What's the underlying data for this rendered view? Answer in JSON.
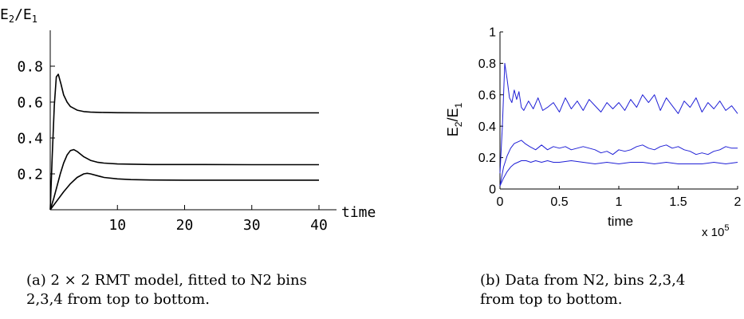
{
  "chart_data": [
    {
      "type": "line",
      "title": "",
      "ylabel": "E2/E1",
      "ylabel_parts": {
        "a": "E",
        "a_sub": "2",
        "slash": "/",
        "b": "E",
        "b_sub": "1"
      },
      "xlabel": "time",
      "xlim": [
        0,
        40
      ],
      "ylim": [
        0,
        1.0
      ],
      "xticks": [
        10,
        20,
        30,
        40
      ],
      "yticks": [
        0.2,
        0.4,
        0.6,
        0.8
      ],
      "xtick_labels": [
        "10",
        "20",
        "30",
        "40"
      ],
      "ytick_labels": [
        "0.2",
        "0.4",
        "0.6",
        "0.8"
      ],
      "grid": false,
      "line_color": "#000000",
      "series": [
        {
          "x": [
            0,
            0.3,
            0.6,
            0.9,
            1.2,
            1.6,
            2.0,
            2.5,
            3.0,
            4.0,
            5.0,
            6.0,
            8.0,
            10.0,
            15.0,
            20.0,
            30.0,
            40.0
          ],
          "y": [
            0.0,
            0.3,
            0.58,
            0.74,
            0.755,
            0.7,
            0.64,
            0.6,
            0.575,
            0.555,
            0.547,
            0.544,
            0.542,
            0.541,
            0.54,
            0.54,
            0.54,
            0.54
          ]
        },
        {
          "x": [
            0,
            0.5,
            1.0,
            1.5,
            2.0,
            2.5,
            3.0,
            3.5,
            4.0,
            5.0,
            6.0,
            7.0,
            8.0,
            10.0,
            15.0,
            20.0,
            30.0,
            40.0
          ],
          "y": [
            0.0,
            0.06,
            0.13,
            0.2,
            0.26,
            0.305,
            0.33,
            0.335,
            0.325,
            0.295,
            0.275,
            0.265,
            0.26,
            0.255,
            0.252,
            0.252,
            0.251,
            0.251
          ]
        },
        {
          "x": [
            0,
            1.0,
            2.0,
            3.0,
            4.0,
            5.0,
            5.5,
            6.0,
            7.0,
            8.0,
            10.0,
            12.0,
            15.0,
            20.0,
            30.0,
            40.0
          ],
          "y": [
            0.0,
            0.05,
            0.1,
            0.145,
            0.18,
            0.2,
            0.203,
            0.2,
            0.19,
            0.18,
            0.172,
            0.168,
            0.166,
            0.165,
            0.165,
            0.165
          ]
        }
      ]
    },
    {
      "type": "line",
      "title": "",
      "ylabel": "E2/E1",
      "ylabel_parts": {
        "a": "E",
        "a_sub": "2",
        "slash": "/",
        "b": "E",
        "b_sub": "1"
      },
      "xlabel": "time",
      "x_multiplier": "x 10",
      "x_multiplier_exp": "5",
      "xlim": [
        0,
        2
      ],
      "ylim": [
        0,
        1
      ],
      "xticks": [
        0,
        0.5,
        1,
        1.5,
        2
      ],
      "yticks": [
        0,
        0.2,
        0.4,
        0.6,
        0.8,
        1
      ],
      "xtick_labels": [
        "0",
        "0.5",
        "1",
        "1.5",
        "2"
      ],
      "ytick_labels": [
        "0",
        "0.2",
        "0.4",
        "0.6",
        "0.8",
        "1"
      ],
      "grid": false,
      "line_color": "#1f1fd6",
      "series": [
        {
          "x": [
            0,
            0.02,
            0.04,
            0.06,
            0.08,
            0.1,
            0.12,
            0.14,
            0.16,
            0.18,
            0.2,
            0.24,
            0.28,
            0.32,
            0.36,
            0.4,
            0.45,
            0.5,
            0.55,
            0.6,
            0.65,
            0.7,
            0.75,
            0.8,
            0.85,
            0.9,
            0.95,
            1.0,
            1.05,
            1.1,
            1.15,
            1.2,
            1.25,
            1.3,
            1.35,
            1.4,
            1.45,
            1.5,
            1.55,
            1.6,
            1.65,
            1.7,
            1.75,
            1.8,
            1.85,
            1.9,
            1.95,
            2.0
          ],
          "y": [
            0.1,
            0.4,
            0.8,
            0.7,
            0.58,
            0.55,
            0.63,
            0.57,
            0.62,
            0.52,
            0.5,
            0.56,
            0.51,
            0.58,
            0.5,
            0.52,
            0.55,
            0.49,
            0.58,
            0.51,
            0.56,
            0.5,
            0.57,
            0.53,
            0.49,
            0.55,
            0.51,
            0.55,
            0.5,
            0.57,
            0.52,
            0.6,
            0.55,
            0.6,
            0.5,
            0.58,
            0.53,
            0.48,
            0.56,
            0.52,
            0.58,
            0.49,
            0.55,
            0.51,
            0.56,
            0.5,
            0.53,
            0.48
          ]
        },
        {
          "x": [
            0,
            0.03,
            0.06,
            0.09,
            0.12,
            0.15,
            0.18,
            0.21,
            0.25,
            0.3,
            0.35,
            0.4,
            0.45,
            0.5,
            0.55,
            0.6,
            0.65,
            0.7,
            0.75,
            0.8,
            0.85,
            0.9,
            0.95,
            1.0,
            1.05,
            1.1,
            1.15,
            1.2,
            1.25,
            1.3,
            1.35,
            1.4,
            1.45,
            1.5,
            1.55,
            1.6,
            1.65,
            1.7,
            1.75,
            1.8,
            1.85,
            1.9,
            1.95,
            2.0
          ],
          "y": [
            0.02,
            0.14,
            0.21,
            0.26,
            0.29,
            0.3,
            0.31,
            0.29,
            0.27,
            0.25,
            0.28,
            0.25,
            0.27,
            0.26,
            0.27,
            0.25,
            0.26,
            0.27,
            0.26,
            0.25,
            0.23,
            0.24,
            0.22,
            0.25,
            0.24,
            0.25,
            0.27,
            0.28,
            0.26,
            0.25,
            0.27,
            0.28,
            0.26,
            0.27,
            0.25,
            0.24,
            0.22,
            0.23,
            0.22,
            0.24,
            0.25,
            0.27,
            0.26,
            0.26
          ]
        },
        {
          "x": [
            0,
            0.03,
            0.06,
            0.09,
            0.12,
            0.15,
            0.18,
            0.22,
            0.26,
            0.3,
            0.35,
            0.4,
            0.45,
            0.5,
            0.6,
            0.7,
            0.8,
            0.9,
            1.0,
            1.1,
            1.2,
            1.3,
            1.4,
            1.5,
            1.6,
            1.7,
            1.8,
            1.9,
            2.0
          ],
          "y": [
            0.02,
            0.07,
            0.11,
            0.14,
            0.16,
            0.17,
            0.18,
            0.18,
            0.17,
            0.18,
            0.17,
            0.18,
            0.17,
            0.17,
            0.18,
            0.17,
            0.16,
            0.17,
            0.16,
            0.17,
            0.17,
            0.16,
            0.17,
            0.16,
            0.16,
            0.16,
            0.17,
            0.16,
            0.17
          ]
        }
      ]
    }
  ],
  "captions": {
    "a_line1": "(a) 2 × 2 RMT model, fitted to N2 bins",
    "a_line2": "2,3,4 from top to bottom.",
    "b_line1": "(b)  Data from N2, bins 2,3,4",
    "b_line2": "from top to bottom."
  }
}
